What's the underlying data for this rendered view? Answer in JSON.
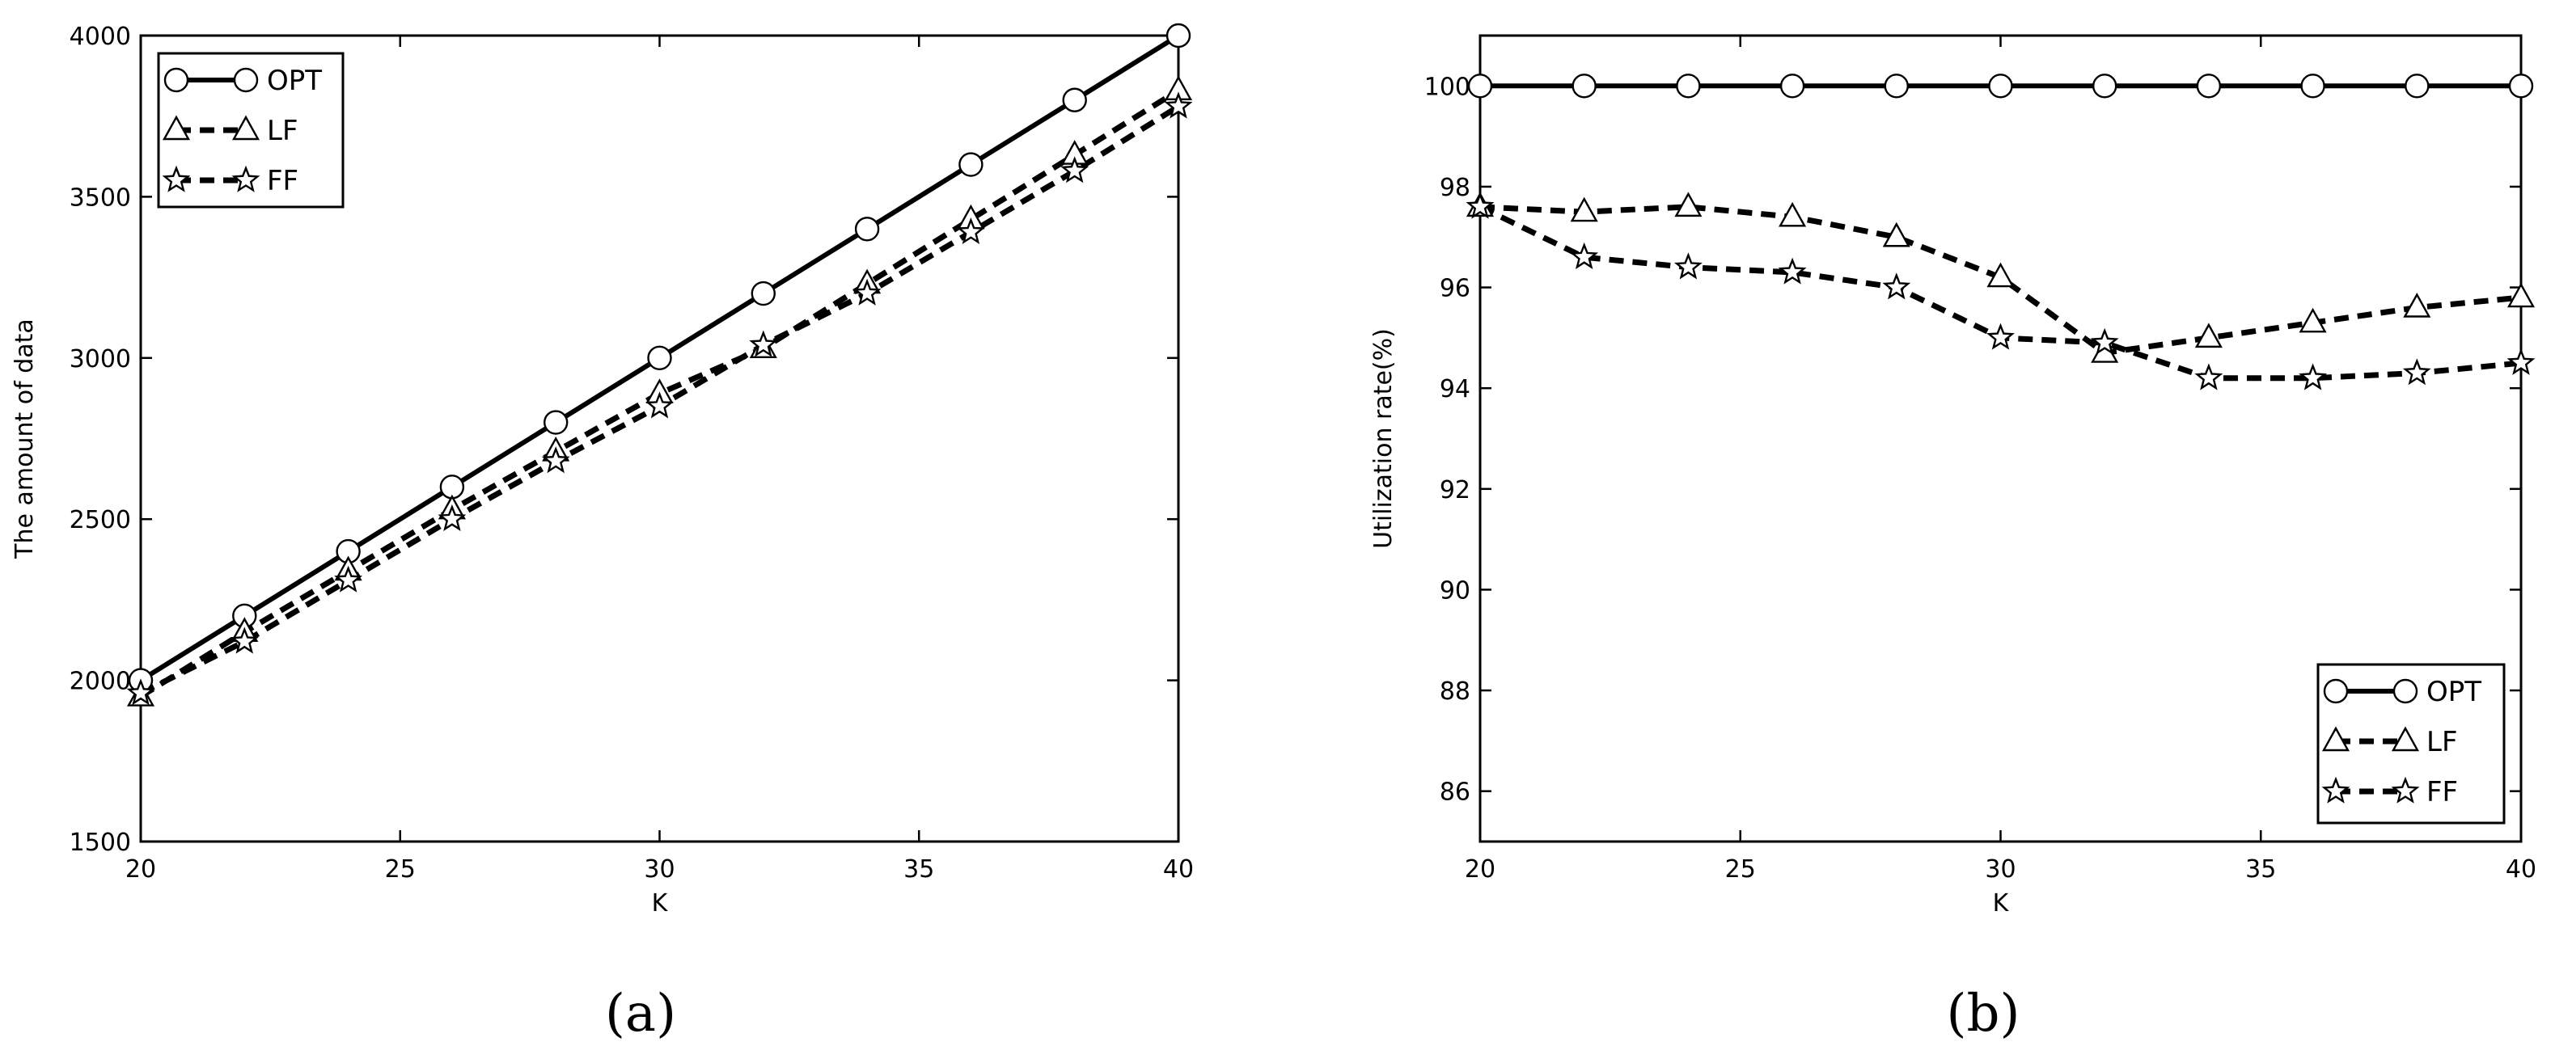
{
  "chart_data": [
    {
      "type": "line",
      "panel": "(a)",
      "xlabel": "K",
      "ylabel": "The amount of data",
      "xlim": [
        20,
        40
      ],
      "ylim": [
        1500,
        4000
      ],
      "xticks": [
        20,
        25,
        30,
        35,
        40
      ],
      "yticks": [
        1500,
        2000,
        2500,
        3000,
        3500,
        4000
      ],
      "grid": false,
      "legend_position": "top-left",
      "x": [
        20,
        22,
        24,
        26,
        28,
        30,
        32,
        34,
        36,
        38,
        40
      ],
      "series": [
        {
          "name": "OPT",
          "marker": "circle",
          "style": "solid",
          "values": [
            2000,
            2200,
            2400,
            2600,
            2800,
            3000,
            3200,
            3400,
            3600,
            3800,
            4000
          ]
        },
        {
          "name": "LF",
          "marker": "triangle",
          "style": "dashed",
          "values": [
            1950,
            2150,
            2340,
            2530,
            2710,
            2890,
            3030,
            3230,
            3430,
            3630,
            3830
          ]
        },
        {
          "name": "FF",
          "marker": "star",
          "style": "dashed",
          "values": [
            1960,
            2120,
            2310,
            2500,
            2680,
            2850,
            3040,
            3200,
            3390,
            3580,
            3780
          ]
        }
      ]
    },
    {
      "type": "line",
      "panel": "(b)",
      "xlabel": "K",
      "ylabel": "Utilization rate(%)",
      "xlim": [
        20,
        40
      ],
      "ylim": [
        85,
        101
      ],
      "xticks": [
        20,
        25,
        30,
        35,
        40
      ],
      "yticks": [
        86,
        88,
        90,
        92,
        94,
        96,
        98,
        100
      ],
      "grid": false,
      "legend_position": "bottom-right",
      "x": [
        20,
        22,
        24,
        26,
        28,
        30,
        32,
        34,
        36,
        38,
        40
      ],
      "series": [
        {
          "name": "OPT",
          "marker": "circle",
          "style": "solid",
          "values": [
            100,
            100,
            100,
            100,
            100,
            100,
            100,
            100,
            100,
            100,
            100
          ]
        },
        {
          "name": "LF",
          "marker": "triangle",
          "style": "dashed",
          "values": [
            97.6,
            97.5,
            97.6,
            97.4,
            97.0,
            96.2,
            94.7,
            95.0,
            95.3,
            95.6,
            95.8
          ]
        },
        {
          "name": "FF",
          "marker": "star",
          "style": "dashed",
          "values": [
            97.6,
            96.6,
            96.4,
            96.3,
            96.0,
            95.0,
            94.9,
            94.2,
            94.2,
            94.3,
            94.5
          ]
        }
      ]
    }
  ]
}
